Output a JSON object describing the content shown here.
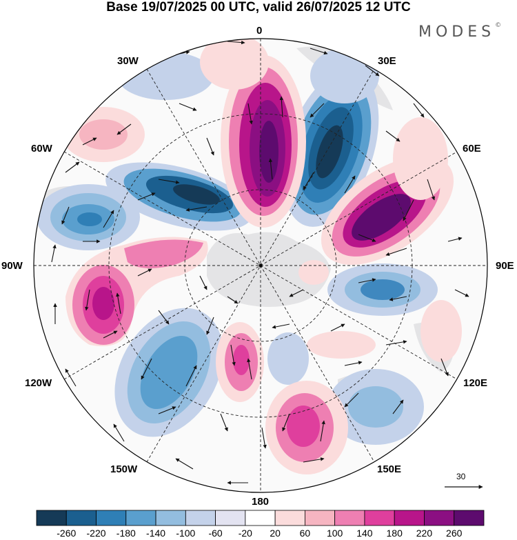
{
  "title": "Base 19/07/2025 00 UTC, valid 26/07/2025 12 UTC",
  "brand": "MODES",
  "brand_mark": "©",
  "longitude_labels": {
    "lon_0": "0",
    "lon_30e": "30E",
    "lon_60e": "60E",
    "lon_90e": "90E",
    "lon_120e": "120E",
    "lon_150e": "150E",
    "lon_180": "180",
    "lon_150w": "150W",
    "lon_120w": "120W",
    "lon_90w": "90W",
    "lon_60w": "60W",
    "lon_30w": "30W"
  },
  "colorbar": {
    "levels": [
      "-260",
      "-220",
      "-180",
      "-140",
      "-100",
      "-60",
      "-20",
      "20",
      "60",
      "100",
      "140",
      "180",
      "220",
      "260"
    ],
    "colors": [
      "#153a57",
      "#1b5f8f",
      "#2f7fb6",
      "#5a9fce",
      "#93bddf",
      "#c4d2ea",
      "#e3e3f1",
      "#ffffff",
      "#fbdcdc",
      "#f6b5c1",
      "#ee7fb2",
      "#df3f9d",
      "#b8158a",
      "#8b0f82",
      "#5d0b6e"
    ]
  },
  "reference_vector": {
    "value": "30"
  },
  "colors": {
    "neg_strong": "#1d4d78",
    "neg_mid": "#3f88bf",
    "neg_weak": "#b7c8e4",
    "pos_strong": "#6a0e78",
    "pos_mid": "#d42c96",
    "pos_weak": "#f6c8d2",
    "land": "#e6e6e6"
  }
}
